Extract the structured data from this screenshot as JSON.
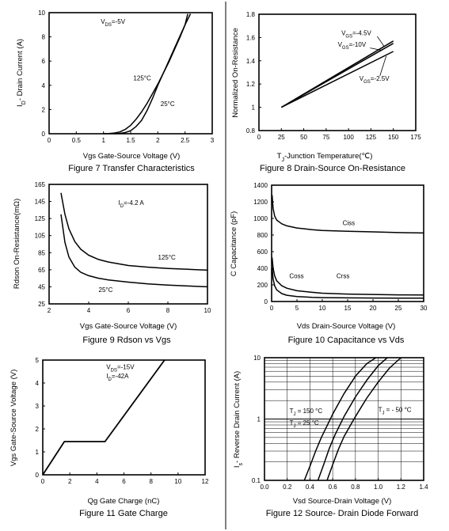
{
  "chart_data": [
    {
      "id": "fig7",
      "type": "line",
      "title": "Figure 7 Transfer Characteristics",
      "xlabel": "Vgs Gate-Source Voltage (V)",
      "ylabel": "I_D- Drain Current (A)",
      "xlim": [
        0,
        3
      ],
      "ylim": [
        0,
        10
      ],
      "xticks": [
        "0",
        "0.5",
        "1",
        "1.5",
        "2",
        "2.5",
        "3"
      ],
      "yticks": [
        "0",
        "2",
        "4",
        "6",
        "8",
        "10"
      ],
      "xtick_values": [
        0,
        0.5,
        1,
        1.5,
        2,
        2.5,
        3
      ],
      "ytick_values": [
        0,
        2,
        4,
        6,
        8,
        10
      ],
      "grid": false,
      "series": [
        {
          "name": "125°C",
          "x": [
            1.0,
            1.1,
            1.2,
            1.3,
            1.4,
            1.5,
            1.6,
            1.7,
            1.8,
            1.9,
            2.0,
            2.1,
            2.2,
            2.3,
            2.4,
            2.5,
            2.55
          ],
          "y": [
            0.0,
            0.02,
            0.06,
            0.15,
            0.35,
            0.7,
            1.2,
            1.8,
            2.5,
            3.3,
            4.1,
            5.0,
            5.9,
            6.9,
            7.9,
            9.0,
            9.9
          ]
        },
        {
          "name": "25°C",
          "x": [
            1.2,
            1.3,
            1.4,
            1.5,
            1.6,
            1.7,
            1.8,
            1.9,
            2.0,
            2.1,
            2.2,
            2.3,
            2.4,
            2.5,
            2.6
          ],
          "y": [
            0.0,
            0.03,
            0.1,
            0.25,
            0.6,
            1.1,
            1.9,
            2.9,
            4.0,
            5.0,
            6.0,
            7.0,
            8.0,
            9.0,
            9.9
          ]
        }
      ],
      "annotations": [
        {
          "text": "V_DS=-5V",
          "x": 0.95,
          "y": 9.1
        },
        {
          "text": "125°C",
          "x": 1.55,
          "y": 4.4
        },
        {
          "text": "25°C",
          "x": 2.05,
          "y": 2.3
        }
      ]
    },
    {
      "id": "fig8",
      "type": "line",
      "title": "Figure 8 Drain-Source On-Resistance",
      "xlabel": "T_J-Junction Temperature(℃)",
      "ylabel": "Normalized On-Resistance",
      "xlim": [
        0,
        175
      ],
      "ylim": [
        0.8,
        1.8
      ],
      "xticks": [
        "0",
        "25",
        "50",
        "75",
        "100",
        "125",
        "150",
        "175"
      ],
      "yticks": [
        "0.8",
        "1",
        "1.2",
        "1.4",
        "1.6",
        "1.8"
      ],
      "xtick_values": [
        0,
        25,
        50,
        75,
        100,
        125,
        150,
        175
      ],
      "ytick_values": [
        0.8,
        1.0,
        1.2,
        1.4,
        1.6,
        1.8
      ],
      "grid": false,
      "series": [
        {
          "name": "V_GS=-4.5V",
          "x": [
            25,
            150
          ],
          "y": [
            1.0,
            1.57
          ]
        },
        {
          "name": "V_GS=-10V",
          "x": [
            25,
            150
          ],
          "y": [
            1.0,
            1.55
          ]
        },
        {
          "name": "V_GS=-2.5V",
          "x": [
            25,
            150
          ],
          "y": [
            1.0,
            1.48
          ]
        }
      ],
      "annotations": [
        {
          "text": "V_GS=-4.5V",
          "x": 92,
          "y": 1.62
        },
        {
          "text": "V_GS=-10V",
          "x": 88,
          "y": 1.52
        },
        {
          "text": "V_GS=-2.5V",
          "x": 112,
          "y": 1.23
        }
      ]
    },
    {
      "id": "fig9",
      "type": "line",
      "title": "Figure 9 Rdson vs Vgs",
      "xlabel": "Vgs Gate-Source Voltage (V)",
      "ylabel": "Rdson On-Resistance(mΩ)",
      "xlim": [
        2,
        10
      ],
      "ylim": [
        25,
        165
      ],
      "xticks": [
        "2",
        "4",
        "6",
        "8",
        "10"
      ],
      "yticks": [
        "25",
        "45",
        "65",
        "85",
        "105",
        "125",
        "145",
        "165"
      ],
      "xtick_values": [
        2,
        4,
        6,
        8,
        10
      ],
      "ytick_values": [
        25,
        45,
        65,
        85,
        105,
        125,
        145,
        165
      ],
      "grid": false,
      "series": [
        {
          "name": "125°C",
          "x": [
            2.6,
            2.8,
            3.0,
            3.3,
            3.6,
            4.0,
            4.5,
            5.0,
            6.0,
            7.0,
            8.0,
            9.0,
            10.0
          ],
          "y": [
            155,
            130,
            113,
            98,
            89,
            82,
            77,
            74,
            70,
            68,
            66.5,
            65.5,
            64.5
          ]
        },
        {
          "name": "25°C",
          "x": [
            2.6,
            2.8,
            3.0,
            3.3,
            3.6,
            4.0,
            4.5,
            5.0,
            6.0,
            7.0,
            8.0,
            9.0,
            10.0
          ],
          "y": [
            130,
            97,
            80,
            68,
            62,
            58,
            55,
            53,
            50.5,
            48.5,
            47,
            46,
            45
          ]
        }
      ],
      "annotations": [
        {
          "text": "I_D=-4.2 A",
          "x": 5.5,
          "y": 141
        },
        {
          "text": "125°C",
          "x": 7.5,
          "y": 77
        },
        {
          "text": "25°C",
          "x": 4.5,
          "y": 39
        }
      ]
    },
    {
      "id": "fig10",
      "type": "line",
      "title": "Figure 10 Capacitance vs Vds",
      "xlabel": "Vds Drain-Source Voltage (V)",
      "ylabel": "C Capacitance (pF)",
      "xlim": [
        0,
        30
      ],
      "ylim": [
        0,
        1400
      ],
      "xticks": [
        "0",
        "5",
        "10",
        "15",
        "20",
        "25",
        "30"
      ],
      "yticks": [
        "0",
        "200",
        "400",
        "600",
        "800",
        "1000",
        "1200",
        "1400"
      ],
      "xtick_values": [
        0,
        5,
        10,
        15,
        20,
        25,
        30
      ],
      "ytick_values": [
        0,
        200,
        400,
        600,
        800,
        1000,
        1200,
        1400
      ],
      "grid": false,
      "series": [
        {
          "name": "Ciss",
          "x": [
            0.1,
            0.3,
            0.6,
            1,
            2,
            3,
            5,
            8,
            10,
            15,
            20,
            25,
            30
          ],
          "y": [
            1280,
            1120,
            1030,
            980,
            935,
            910,
            885,
            865,
            855,
            845,
            838,
            830,
            825
          ]
        },
        {
          "name": "Coss",
          "x": [
            0.1,
            0.3,
            0.6,
            1,
            2,
            3,
            5,
            8,
            10,
            15,
            20,
            25,
            30
          ],
          "y": [
            530,
            400,
            310,
            250,
            190,
            160,
            130,
            110,
            100,
            90,
            85,
            80,
            78
          ]
        },
        {
          "name": "Crss",
          "x": [
            0.1,
            0.3,
            0.6,
            1,
            2,
            3,
            5,
            8,
            10,
            15,
            20,
            25,
            30
          ],
          "y": [
            400,
            270,
            190,
            140,
            95,
            75,
            60,
            50,
            47,
            44,
            42,
            41,
            40
          ]
        }
      ],
      "annotations": [
        {
          "text": "Ciss",
          "x": 14,
          "y": 920
        },
        {
          "text": "Coss",
          "x": 3.5,
          "y": 280
        },
        {
          "text": "Crss",
          "x": 12.8,
          "y": 280
        }
      ]
    },
    {
      "id": "fig11",
      "type": "line",
      "title": "Figure 11 Gate Charge",
      "xlabel": "Qg Gate Charge (nC)",
      "ylabel": "Vgs Gate-Source Voltage (V)",
      "xlim": [
        0,
        12
      ],
      "ylim": [
        0,
        5
      ],
      "xticks": [
        "0",
        "2",
        "4",
        "6",
        "8",
        "10",
        "12"
      ],
      "yticks": [
        "0",
        "1",
        "2",
        "3",
        "4",
        "5"
      ],
      "xtick_values": [
        0,
        2,
        4,
        6,
        8,
        10,
        12
      ],
      "ytick_values": [
        0,
        1,
        2,
        3,
        4,
        5
      ],
      "grid": false,
      "series": [
        {
          "name": "",
          "x": [
            0,
            1.6,
            4.6,
            9.0
          ],
          "y": [
            0,
            1.45,
            1.45,
            5.0
          ]
        }
      ],
      "annotations": [
        {
          "text": "V_DS=-15V",
          "x": 4.7,
          "y": 4.6
        },
        {
          "text": "I_D=-42A",
          "x": 4.7,
          "y": 4.2
        }
      ]
    },
    {
      "id": "fig12",
      "type": "line",
      "title": "Figure 12 Source- Drain Diode Forward",
      "xlabel": "Vsd Source-Drain Voltage (V)",
      "ylabel": "I_s- Reverse Drain Current (A)",
      "xlim": [
        0,
        1.4
      ],
      "ylim": [
        0.1,
        10
      ],
      "yscale": "log",
      "xticks": [
        "0.0",
        "0.2",
        "0.4",
        "0.6",
        "0.8",
        "1.0",
        "1.2",
        "1.4"
      ],
      "yticks": [
        "0.1",
        "1",
        "10"
      ],
      "xtick_values": [
        0,
        0.2,
        0.4,
        0.6,
        0.8,
        1.0,
        1.2,
        1.4
      ],
      "ytick_values": [
        0.1,
        1,
        10
      ],
      "grid": true,
      "series": [
        {
          "name": "T_J = 150 °C",
          "x": [
            0.35,
            0.4,
            0.45,
            0.5,
            0.6,
            0.7,
            0.8,
            0.9,
            0.98
          ],
          "y": [
            0.1,
            0.17,
            0.3,
            0.5,
            1.2,
            2.6,
            5.0,
            8.0,
            10
          ]
        },
        {
          "name": "T_J = 25 °C",
          "x": [
            0.47,
            0.52,
            0.57,
            0.62,
            0.7,
            0.8,
            0.9,
            1.0,
            1.08
          ],
          "y": [
            0.1,
            0.18,
            0.33,
            0.55,
            1.1,
            2.3,
            4.3,
            7.4,
            10
          ]
        },
        {
          "name": "T_J = - 50 °C",
          "x": [
            0.55,
            0.6,
            0.65,
            0.7,
            0.8,
            0.9,
            1.0,
            1.1,
            1.2
          ],
          "y": [
            0.1,
            0.18,
            0.32,
            0.52,
            1.1,
            2.2,
            4.0,
            6.8,
            10
          ]
        }
      ],
      "annotations": [
        {
          "text": "T_J = 150 °C",
          "x": 0.22,
          "y": 1.25
        },
        {
          "text": "T_J = 25 °C",
          "x": 0.22,
          "y": 0.8
        },
        {
          "text": "T_J = - 50 °C",
          "x": 1.0,
          "y": 1.3
        }
      ]
    }
  ]
}
